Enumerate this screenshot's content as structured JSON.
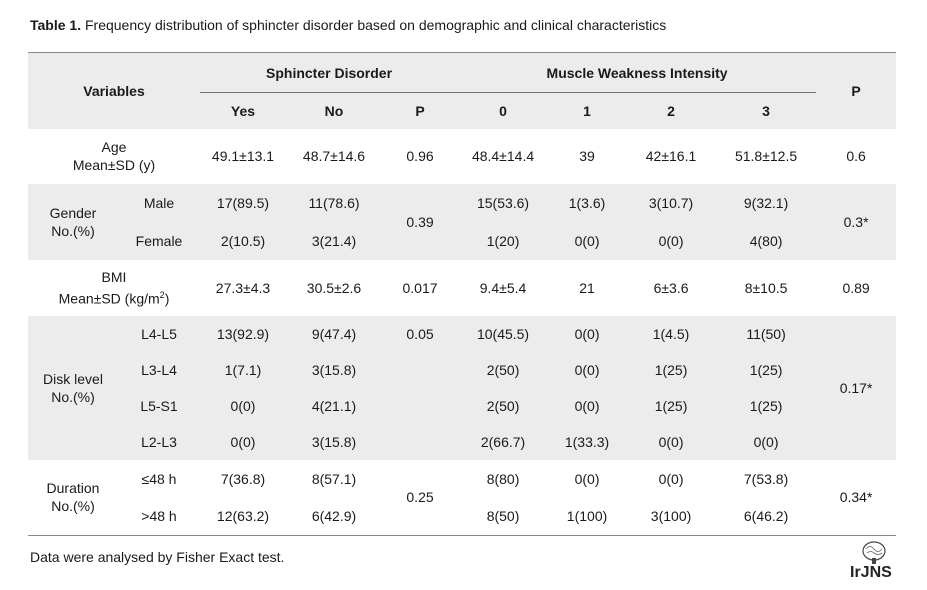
{
  "caption": {
    "bold": "Table 1.",
    "text": " Frequency distribution of sphincter disorder based on demographic and clinical characteristics"
  },
  "header": {
    "variables": "Variables",
    "sphincter": "Sphincter Disorder",
    "muscle": "Muscle Weakness Intensity",
    "p": "P",
    "sub": [
      "Yes",
      "No",
      "P",
      "0",
      "1",
      "2",
      "3"
    ]
  },
  "rows": {
    "age": {
      "label1": "Age",
      "label2": "Mean±SD (y)",
      "cells": [
        "49.1±13.1",
        "48.7±14.6",
        "0.96",
        "48.4±14.4",
        "39",
        "42±16.1",
        "51.8±12.5",
        "0.6"
      ]
    },
    "gender": {
      "label1": "Gender",
      "label2": "No.(%)",
      "p_sph": "0.39",
      "p_all": "0.3*",
      "male": {
        "label": "Male",
        "cells": [
          "17(89.5)",
          "11(78.6)",
          "15(53.6)",
          "1(3.6)",
          "3(10.7)",
          "9(32.1)"
        ]
      },
      "female": {
        "label": "Female",
        "cells": [
          "2(10.5)",
          "3(21.4)",
          "1(20)",
          "0(0)",
          "0(0)",
          "4(80)"
        ]
      }
    },
    "bmi": {
      "label1": "BMI",
      "label2": "Mean±SD (kg/m",
      "label2_sup": "2",
      "label2_end": ")",
      "cells": [
        "27.3±4.3",
        "30.5±2.6",
        "0.017",
        "9.4±5.4",
        "21",
        "6±3.6",
        "8±10.5",
        "0.89"
      ]
    },
    "disk": {
      "label1": "Disk level",
      "label2": "No.(%)",
      "p_sph": "0.05",
      "p_all": "0.17*",
      "items": [
        {
          "label": "L4-L5",
          "cells": [
            "13(92.9)",
            "9(47.4)",
            "10(45.5)",
            "0(0)",
            "1(4.5)",
            "11(50)"
          ]
        },
        {
          "label": "L3-L4",
          "cells": [
            "1(7.1)",
            "3(15.8)",
            "2(50)",
            "0(0)",
            "1(25)",
            "1(25)"
          ]
        },
        {
          "label": "L5-S1",
          "cells": [
            "0(0)",
            "4(21.1)",
            "2(50)",
            "0(0)",
            "1(25)",
            "1(25)"
          ]
        },
        {
          "label": "L2-L3",
          "cells": [
            "0(0)",
            "3(15.8)",
            "2(66.7)",
            "1(33.3)",
            "0(0)",
            "0(0)"
          ]
        }
      ]
    },
    "duration": {
      "label1": "Duration",
      "label2": "No.(%)",
      "p_sph": "0.25",
      "p_all": "0.34*",
      "items": [
        {
          "label": "≤48 h",
          "cells": [
            "7(36.8)",
            "8(57.1)",
            "8(80)",
            "0(0)",
            "0(0)",
            "7(53.8)"
          ]
        },
        {
          "label": ">48 h",
          "cells": [
            "12(63.2)",
            "6(42.9)",
            "8(50)",
            "1(100)",
            "3(100)",
            "6(46.2)"
          ]
        }
      ]
    }
  },
  "footnote": "Data were analysed by Fisher Exact test.",
  "logo_text": "IrJNS"
}
